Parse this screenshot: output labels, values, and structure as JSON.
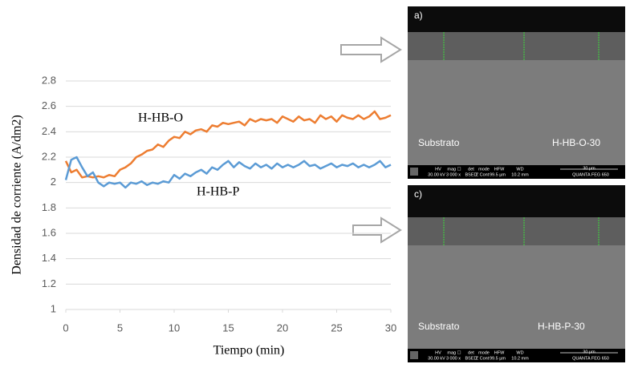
{
  "chart_data": {
    "type": "line",
    "xlabel": "Tiempo (min)",
    "ylabel": "Densidad de corriente (A/dm2)",
    "x": [
      0,
      0.5,
      1,
      1.5,
      2,
      2.5,
      3,
      3.5,
      4,
      4.5,
      5,
      5.5,
      6,
      6.5,
      7,
      7.5,
      8,
      8.5,
      9,
      9.5,
      10,
      10.5,
      11,
      11.5,
      12,
      12.5,
      13,
      13.5,
      14,
      14.5,
      15,
      15.5,
      16,
      16.5,
      17,
      17.5,
      18,
      18.5,
      19,
      19.5,
      20,
      20.5,
      21,
      21.5,
      22,
      22.5,
      23,
      23.5,
      24,
      24.5,
      25,
      25.5,
      26,
      26.5,
      27,
      27.5,
      28,
      28.5,
      29,
      29.5,
      30
    ],
    "series": [
      {
        "name": "H-HB-O",
        "color": "#ed7d31",
        "values": [
          2.17,
          2.08,
          2.1,
          2.04,
          2.05,
          2.04,
          2.05,
          2.04,
          2.06,
          2.05,
          2.1,
          2.12,
          2.15,
          2.2,
          2.22,
          2.25,
          2.26,
          2.3,
          2.28,
          2.33,
          2.36,
          2.35,
          2.4,
          2.38,
          2.41,
          2.42,
          2.4,
          2.45,
          2.44,
          2.47,
          2.46,
          2.47,
          2.48,
          2.45,
          2.5,
          2.48,
          2.5,
          2.49,
          2.5,
          2.47,
          2.52,
          2.5,
          2.48,
          2.52,
          2.49,
          2.5,
          2.47,
          2.53,
          2.5,
          2.52,
          2.48,
          2.53,
          2.51,
          2.5,
          2.53,
          2.5,
          2.52,
          2.56,
          2.5,
          2.51,
          2.53
        ]
      },
      {
        "name": "H-HB-P",
        "color": "#5b9bd5",
        "values": [
          2.02,
          2.18,
          2.2,
          2.12,
          2.05,
          2.08,
          2.0,
          1.97,
          2.0,
          1.99,
          2.0,
          1.96,
          2.0,
          1.99,
          2.01,
          1.98,
          2.0,
          1.99,
          2.01,
          2.0,
          2.06,
          2.03,
          2.07,
          2.05,
          2.08,
          2.1,
          2.07,
          2.12,
          2.1,
          2.14,
          2.17,
          2.12,
          2.16,
          2.13,
          2.11,
          2.15,
          2.12,
          2.14,
          2.11,
          2.15,
          2.12,
          2.14,
          2.12,
          2.14,
          2.17,
          2.13,
          2.14,
          2.11,
          2.13,
          2.15,
          2.12,
          2.14,
          2.13,
          2.15,
          2.12,
          2.14,
          2.12,
          2.14,
          2.17,
          2.12,
          2.14
        ]
      }
    ],
    "xlim": [
      0,
      30
    ],
    "xticks": [
      0,
      5,
      10,
      15,
      20,
      25,
      30
    ],
    "ylim": [
      1,
      2.8
    ],
    "yticks": [
      1,
      1.2,
      1.4,
      1.6,
      1.8,
      2,
      2.2,
      2.4,
      2.6,
      2.8
    ],
    "grid": true
  },
  "images": [
    {
      "label": "a)",
      "substrate": "Substrato",
      "sample": "H-HB-O-30"
    },
    {
      "label": "c)",
      "substrate": "Substrato",
      "sample": "H-HB-P-30"
    }
  ],
  "info_bar": {
    "headers": [
      "HV",
      "mag ☐",
      "det",
      "mode",
      "HFW",
      "WD"
    ],
    "values": [
      "30.00 kV",
      "3 000 x",
      "BSED",
      "Z Cont",
      "99.5 µm",
      "10.2 mm"
    ],
    "scale": "30 µm",
    "instrument": "QUANTA FEG 650"
  }
}
